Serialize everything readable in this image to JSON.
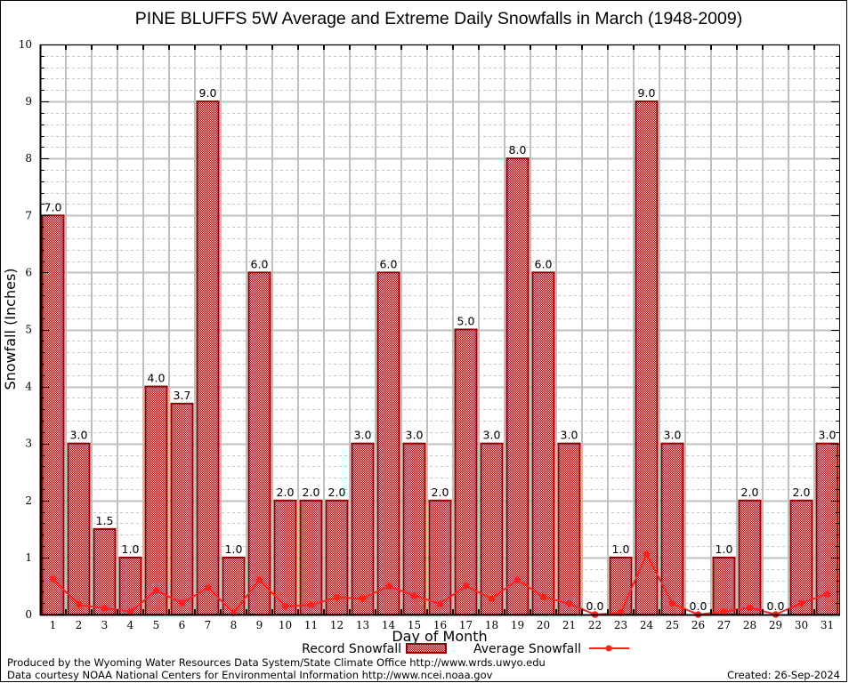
{
  "chart_data": {
    "type": "bar",
    "title": "PINE BLUFFS 5W Average and Extreme Daily Snowfalls in March (1948-2009)",
    "xlabel": "Day of Month",
    "ylabel": "Snowfall (Inches)",
    "ylim": [
      0,
      10
    ],
    "yticks": [
      "0",
      "1",
      "2",
      "3",
      "4",
      "5",
      "6",
      "7",
      "8",
      "9",
      "10"
    ],
    "grid": true,
    "categories": [
      "1",
      "2",
      "3",
      "4",
      "5",
      "6",
      "7",
      "8",
      "9",
      "10",
      "11",
      "12",
      "13",
      "14",
      "15",
      "16",
      "17",
      "18",
      "19",
      "20",
      "21",
      "22",
      "23",
      "24",
      "25",
      "26",
      "27",
      "28",
      "29",
      "30",
      "31"
    ],
    "series": [
      {
        "name": "Record Snowfall",
        "type": "bar",
        "color": "#8b0000",
        "values": [
          7.0,
          3.0,
          1.5,
          1.0,
          4.0,
          3.7,
          9.0,
          1.0,
          6.0,
          2.0,
          2.0,
          2.0,
          3.0,
          6.0,
          3.0,
          2.0,
          5.0,
          3.0,
          8.0,
          6.0,
          3.0,
          0.0,
          1.0,
          9.0,
          3.0,
          0.0,
          1.0,
          2.0,
          0.0,
          2.0,
          3.0
        ],
        "labels": [
          "7.0",
          "3.0",
          "1.5",
          "1.0",
          "4.0",
          "3.7",
          "9.0",
          "1.0",
          "6.0",
          "2.0",
          "2.0",
          "2.0",
          "3.0",
          "6.0",
          "3.0",
          "2.0",
          "5.0",
          "3.0",
          "8.0",
          "6.0",
          "3.0",
          "0.0",
          "1.0",
          "9.0",
          "3.0",
          "0.0",
          "1.0",
          "2.0",
          "0.0",
          "2.0",
          "3.0"
        ]
      },
      {
        "name": "Average Snowfall",
        "type": "line",
        "color": "#ff2020",
        "values": [
          0.62,
          0.17,
          0.11,
          0.05,
          0.42,
          0.2,
          0.47,
          0.03,
          0.61,
          0.14,
          0.17,
          0.3,
          0.28,
          0.5,
          0.33,
          0.19,
          0.5,
          0.28,
          0.61,
          0.31,
          0.19,
          0.0,
          0.03,
          1.06,
          0.19,
          0.0,
          0.05,
          0.12,
          0.0,
          0.2,
          0.36
        ]
      }
    ],
    "legend": {
      "placement": "bottom",
      "entries": [
        "Record Snowfall",
        "Average Snowfall"
      ]
    }
  },
  "footer": {
    "produced_by": "Produced by the Wyoming Water Resources Data System/State Climate Office http://www.wrds.uwyo.edu",
    "data_courtesy": "Data courtesy NOAA National Centers for Environmental Information http://www.ncei.noaa.gov",
    "created": "Created:  26-Sep-2024"
  },
  "colors": {
    "bar_edge": "#8b0000",
    "bar_fill_light": "#ffffff",
    "avg_line": "#ff2020",
    "grid_major": "#c0c0c0",
    "grid_minor": "#c8c8c8"
  }
}
